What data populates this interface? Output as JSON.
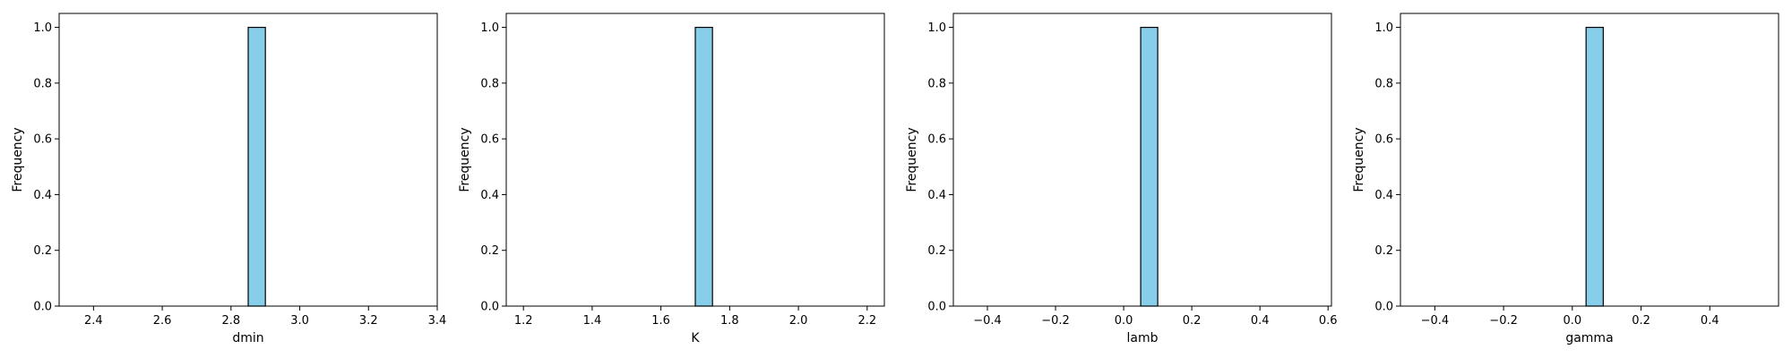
{
  "style": {
    "bar_color": "#87ceeb",
    "edge_color": "#000000"
  },
  "chart_data": [
    {
      "type": "bar",
      "title": "",
      "xlabel": "dmin",
      "ylabel": "Frequency",
      "xlim": [
        2.3,
        3.4
      ],
      "ylim": [
        0,
        1.05
      ],
      "xticks": [
        2.4,
        2.6,
        2.8,
        3.0,
        3.2,
        3.4
      ],
      "xtick_labels": [
        "2.4",
        "2.6",
        "2.8",
        "3.0",
        "3.2",
        "3.4"
      ],
      "yticks": [
        0.0,
        0.2,
        0.4,
        0.6,
        0.8,
        1.0
      ],
      "ytick_labels": [
        "0.0",
        "0.2",
        "0.4",
        "0.6",
        "0.8",
        "1.0"
      ],
      "bins": [
        {
          "x0": 2.85,
          "x1": 2.9,
          "value": 1.0
        }
      ],
      "grid": false
    },
    {
      "type": "bar",
      "title": "",
      "xlabel": "K",
      "ylabel": "Frequency",
      "xlim": [
        1.15,
        2.25
      ],
      "ylim": [
        0,
        1.05
      ],
      "xticks": [
        1.2,
        1.4,
        1.6,
        1.8,
        2.0,
        2.2
      ],
      "xtick_labels": [
        "1.2",
        "1.4",
        "1.6",
        "1.8",
        "2.0",
        "2.2"
      ],
      "yticks": [
        0.0,
        0.2,
        0.4,
        0.6,
        0.8,
        1.0
      ],
      "ytick_labels": [
        "0.0",
        "0.2",
        "0.4",
        "0.6",
        "0.8",
        "1.0"
      ],
      "bins": [
        {
          "x0": 1.7,
          "x1": 1.75,
          "value": 1.0
        }
      ],
      "grid": false
    },
    {
      "type": "bar",
      "title": "",
      "xlabel": "lamb",
      "ylabel": "Frequency",
      "xlim": [
        -0.5,
        0.61
      ],
      "ylim": [
        0,
        1.05
      ],
      "xticks": [
        -0.4,
        -0.2,
        0.0,
        0.2,
        0.4,
        0.6
      ],
      "xtick_labels": [
        "−0.4",
        "−0.2",
        "0.0",
        "0.2",
        "0.4",
        "0.6"
      ],
      "yticks": [
        0.0,
        0.2,
        0.4,
        0.6,
        0.8,
        1.0
      ],
      "ytick_labels": [
        "0.0",
        "0.2",
        "0.4",
        "0.6",
        "0.8",
        "1.0"
      ],
      "bins": [
        {
          "x0": 0.05,
          "x1": 0.1,
          "value": 1.0
        }
      ],
      "grid": false
    },
    {
      "type": "bar",
      "title": "",
      "xlabel": "gamma",
      "ylabel": "Frequency",
      "xlim": [
        -0.5,
        0.6
      ],
      "ylim": [
        0,
        1.05
      ],
      "xticks": [
        -0.4,
        -0.2,
        0.0,
        0.2,
        0.4
      ],
      "xtick_labels": [
        "−0.4",
        "−0.2",
        "0.0",
        "0.2",
        "0.4"
      ],
      "yticks": [
        0.0,
        0.2,
        0.4,
        0.6,
        0.8,
        1.0
      ],
      "ytick_labels": [
        "0.0",
        "0.2",
        "0.4",
        "0.6",
        "0.8",
        "1.0"
      ],
      "bins": [
        {
          "x0": 0.04,
          "x1": 0.09,
          "value": 1.0
        }
      ],
      "grid": false
    }
  ]
}
